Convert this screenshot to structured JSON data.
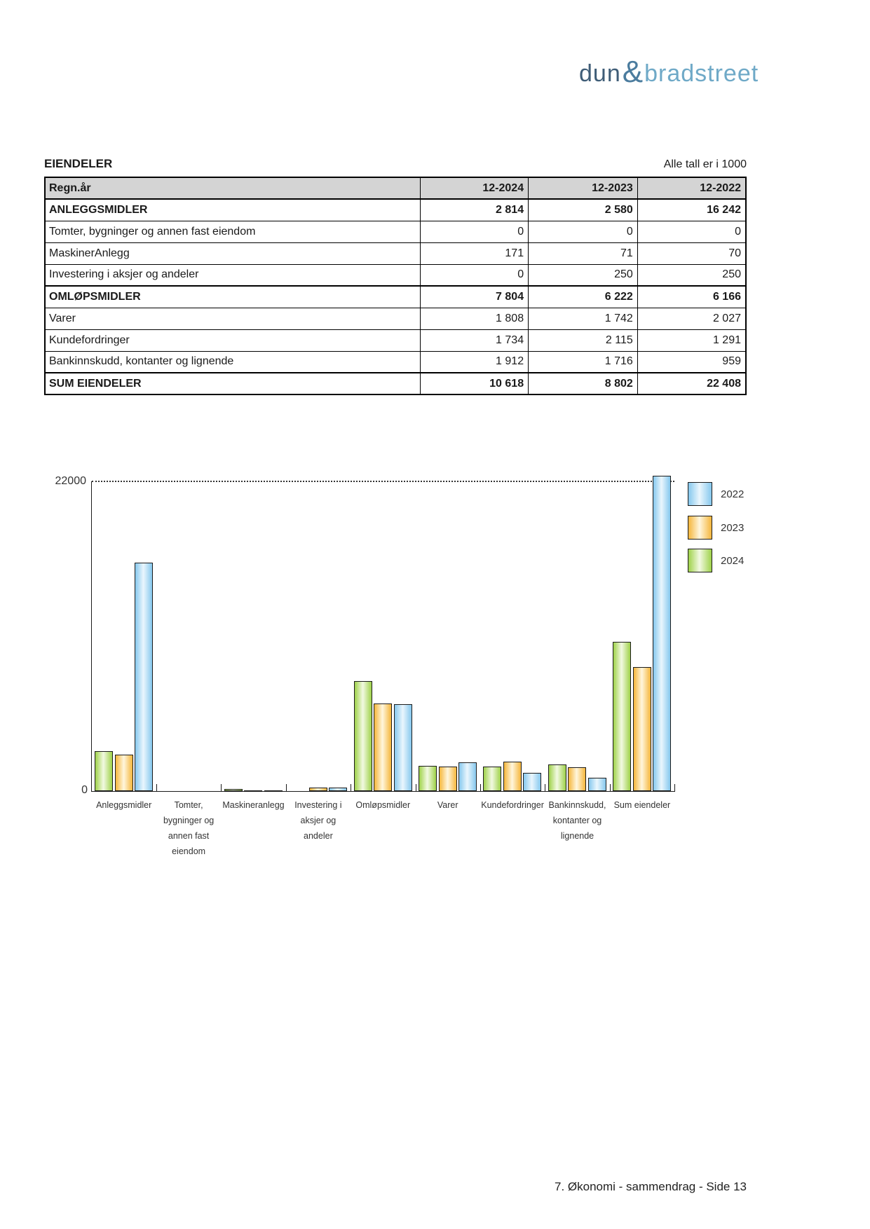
{
  "logo": {
    "word1": "dun",
    "amp": "&",
    "word2": "bradstreet"
  },
  "header": {
    "title": "EIENDELER",
    "note": "Alle tall er i 1000"
  },
  "table": {
    "year_label": "Regn.år",
    "year_cols": [
      "12-2024",
      "12-2023",
      "12-2022"
    ],
    "rows": [
      {
        "label": "ANLEGGSMIDLER",
        "bold": true,
        "values": [
          "2 814",
          "2 580",
          "16 242"
        ]
      },
      {
        "label": "Tomter, bygninger og annen fast eiendom",
        "bold": false,
        "values": [
          "0",
          "0",
          "0"
        ]
      },
      {
        "label": "MaskinerAnlegg",
        "bold": false,
        "values": [
          "171",
          "71",
          "70"
        ]
      },
      {
        "label": "Investering i aksjer og andeler",
        "bold": false,
        "values": [
          "0",
          "250",
          "250"
        ]
      },
      {
        "label": "OMLØPSMIDLER",
        "bold": true,
        "values": [
          "7 804",
          "6 222",
          "6 166"
        ]
      },
      {
        "label": "Varer",
        "bold": false,
        "values": [
          "1 808",
          "1 742",
          "2 027"
        ]
      },
      {
        "label": "Kundefordringer",
        "bold": false,
        "values": [
          "1 734",
          "2 115",
          "1 291"
        ]
      },
      {
        "label": "Bankinnskudd, kontanter og lignende",
        "bold": false,
        "values": [
          "1 912",
          "1 716",
          "959"
        ]
      },
      {
        "label": "SUM EIENDELER",
        "bold": true,
        "values": [
          "10 618",
          "8 802",
          "22 408"
        ]
      }
    ]
  },
  "chart_data": {
    "type": "bar",
    "title": "",
    "xlabel": "",
    "ylabel": "",
    "ylim": [
      0,
      22000
    ],
    "ytick_labels": [
      "0",
      "22000"
    ],
    "grid": "single dotted gridline at y=22000",
    "legend_position": "right",
    "categories": [
      "Anleggsmidler",
      "Tomter,\nbygninger og\nannen fast\neiendom",
      "Maskineranlegg",
      "Investering i\naksjer og\nandeler",
      "Omløpsmidler",
      "Varer",
      "Kundefordringer",
      "Bankinnskudd,\nkontanter og\nlignende",
      "Sum eiendeler"
    ],
    "series": [
      {
        "name": "2022",
        "values": [
          16242,
          0,
          70,
          250,
          6166,
          2027,
          1291,
          959,
          22408
        ],
        "color_edge": "#86c8ee",
        "color_center": "#eaf6fd"
      },
      {
        "name": "2023",
        "values": [
          2580,
          0,
          71,
          250,
          6222,
          1742,
          2115,
          1716,
          8802
        ],
        "color_edge": "#f5b63b",
        "color_center": "#fff6dd"
      },
      {
        "name": "2024",
        "values": [
          2814,
          0,
          171,
          0,
          7804,
          1808,
          1734,
          1912,
          10618
        ],
        "color_edge": "#9fd24a",
        "color_center": "#f2f9e2"
      }
    ],
    "legend_order": [
      "2022",
      "2023",
      "2024"
    ],
    "bar_order": [
      "2024",
      "2023",
      "2022"
    ]
  },
  "footer": {
    "text": "7. Økonomi - sammendrag - Side 13"
  }
}
